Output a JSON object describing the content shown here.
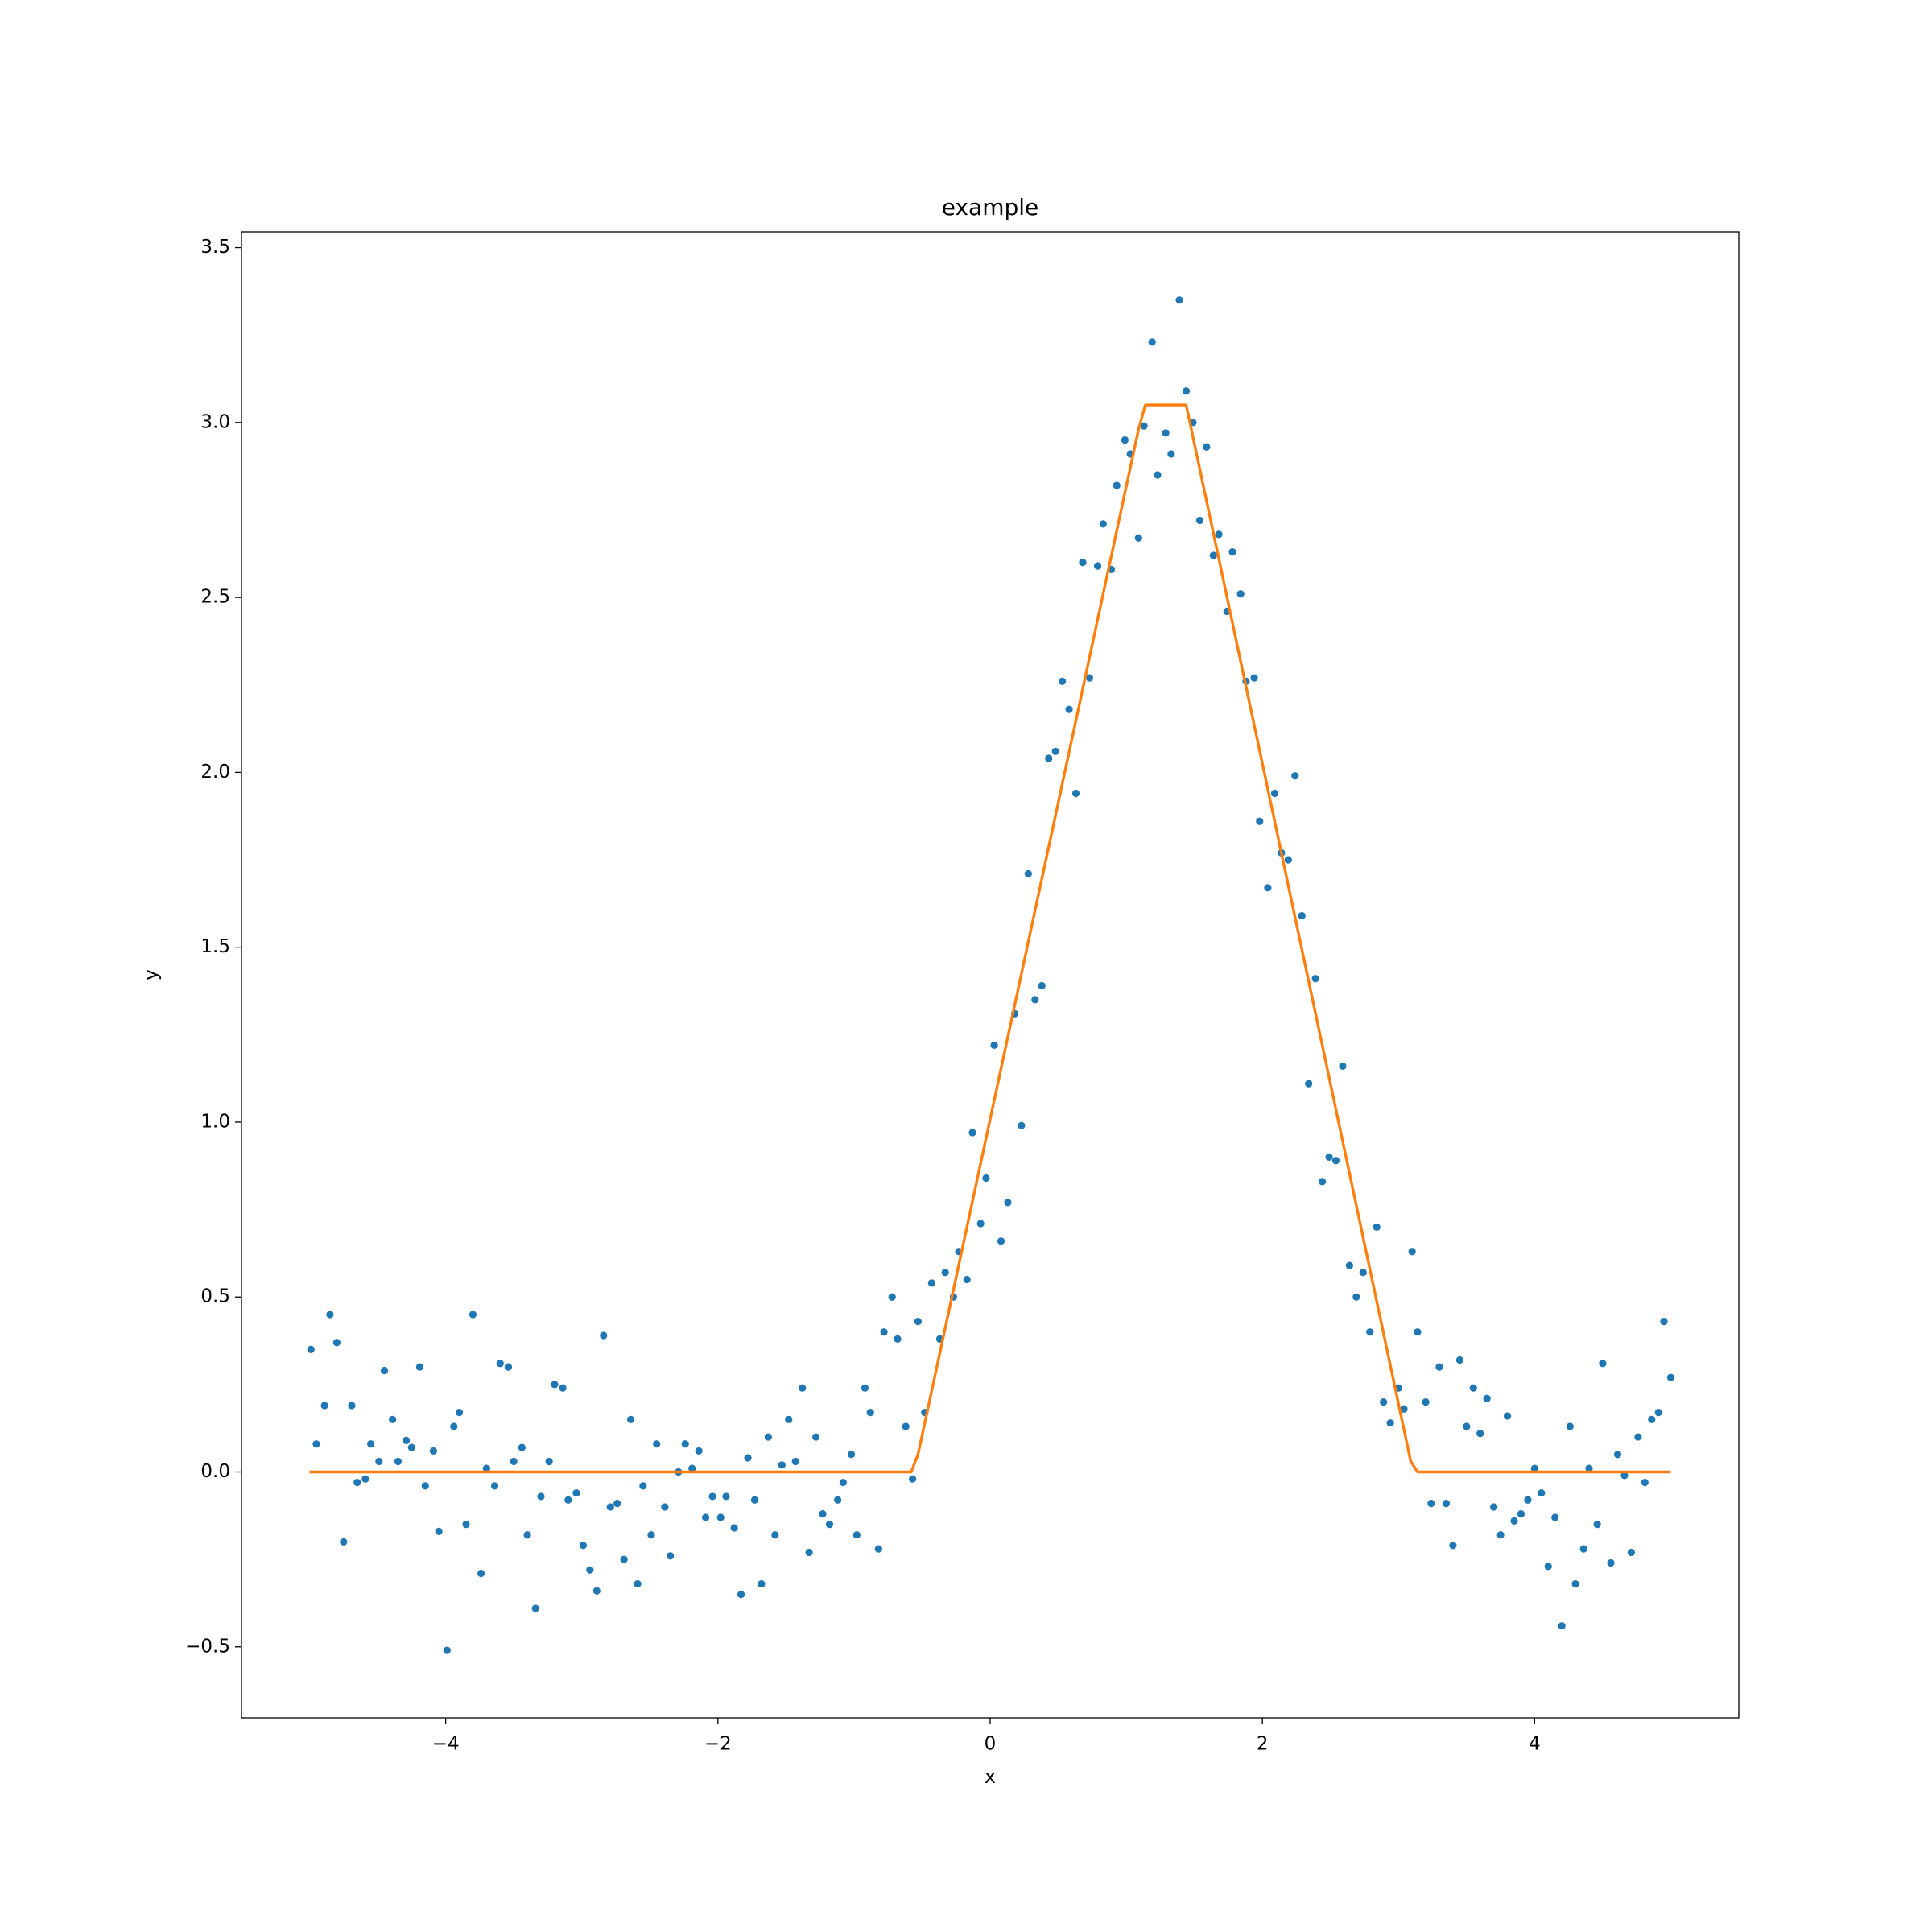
{
  "chart_data": {
    "type": "scatter",
    "title": "example",
    "x_label": "x",
    "y_label": "y",
    "xlim": [
      -5.5,
      5.5
    ],
    "ylim": [
      -0.703,
      3.545
    ],
    "xticks": [
      {
        "value": -4,
        "label": "−4"
      },
      {
        "value": -2,
        "label": "−2"
      },
      0,
      2,
      4
    ],
    "yticks": [
      {
        "value": -0.5,
        "label": "−0.5"
      },
      {
        "value": 0,
        "label": "0.0"
      },
      0.5,
      {
        "value": 1,
        "label": "1.0"
      },
      1.5,
      {
        "value": 2,
        "label": "2.0"
      },
      2.5,
      {
        "value": 3,
        "label": "3.0"
      },
      3.5
    ],
    "grid": false,
    "series": [
      {
        "type": "scatter",
        "color": "#1f77b4",
        "x": [
          -4.99,
          -4.95,
          -4.89,
          -4.85,
          -4.8,
          -4.75,
          -4.69,
          -4.65,
          -4.59,
          -4.55,
          -4.49,
          -4.45,
          -4.39,
          -4.35,
          -4.29,
          -4.25,
          -4.19,
          -4.15,
          -4.09,
          -4.05,
          -3.99,
          -3.94,
          -3.9,
          -3.85,
          -3.8,
          -3.74,
          -3.7,
          -3.64,
          -3.6,
          -3.54,
          -3.5,
          -3.44,
          -3.4,
          -3.34,
          -3.3,
          -3.24,
          -3.2,
          -3.14,
          -3.1,
          -3.04,
          -2.99,
          -2.94,
          -2.89,
          -2.84,
          -2.79,
          -2.74,
          -2.69,
          -2.64,
          -2.59,
          -2.55,
          -2.49,
          -2.45,
          -2.39,
          -2.35,
          -2.29,
          -2.24,
          -2.19,
          -2.14,
          -2.09,
          -2.04,
          -1.98,
          -1.94,
          -1.88,
          -1.83,
          -1.78,
          -1.73,
          -1.68,
          -1.63,
          -1.58,
          -1.53,
          -1.48,
          -1.43,
          -1.38,
          -1.33,
          -1.28,
          -1.23,
          -1.18,
          -1.12,
          -1.08,
          -1.02,
          -0.98,
          -0.92,
          -0.88,
          -0.82,
          -0.78,
          -0.72,
          -0.68,
          -0.62,
          -0.57,
          -0.53,
          -0.48,
          -0.43,
          -0.37,
          -0.33,
          -0.27,
          -0.23,
          -0.17,
          -0.13,
          -0.07,
          -0.03,
          0.03,
          0.08,
          0.13,
          0.18,
          0.23,
          0.28,
          0.33,
          0.38,
          0.43,
          0.48,
          0.53,
          0.58,
          0.63,
          0.68,
          0.73,
          0.79,
          0.83,
          0.89,
          0.93,
          0.99,
          1.03,
          1.09,
          1.13,
          1.19,
          1.23,
          1.29,
          1.33,
          1.39,
          1.44,
          1.49,
          1.54,
          1.59,
          1.64,
          1.68,
          1.74,
          1.78,
          1.84,
          1.88,
          1.94,
          1.98,
          2.04,
          2.09,
          2.14,
          2.19,
          2.24,
          2.29,
          2.34,
          2.39,
          2.44,
          2.49,
          2.54,
          2.59,
          2.64,
          2.69,
          2.74,
          2.79,
          2.84,
          2.89,
          2.94,
          3.0,
          3.04,
          3.1,
          3.14,
          3.2,
          3.24,
          3.3,
          3.35,
          3.4,
          3.45,
          3.5,
          3.55,
          3.6,
          3.65,
          3.7,
          3.75,
          3.8,
          3.85,
          3.9,
          3.95,
          4.0,
          4.05,
          4.1,
          4.15,
          4.2,
          4.26,
          4.3,
          4.36,
          4.4,
          4.46,
          4.5,
          4.56,
          4.61,
          4.66,
          4.71,
          4.76,
          4.81,
          4.86,
          4.91,
          4.95,
          5.0
        ],
        "values": [
          0.35,
          0.08,
          0.19,
          0.45,
          0.37,
          -0.2,
          0.19,
          -0.03,
          -0.02,
          0.08,
          0.03,
          0.29,
          0.15,
          0.03,
          0.09,
          0.07,
          0.3,
          -0.04,
          0.06,
          -0.17,
          -0.51,
          0.13,
          0.17,
          -0.15,
          0.45,
          -0.29,
          0.01,
          -0.04,
          0.31,
          0.3,
          0.03,
          0.07,
          -0.18,
          -0.39,
          -0.07,
          0.03,
          0.25,
          0.24,
          -0.08,
          -0.06,
          -0.21,
          -0.28,
          -0.34,
          0.39,
          -0.1,
          -0.09,
          -0.25,
          0.15,
          -0.32,
          -0.04,
          -0.18,
          0.08,
          -0.1,
          -0.24,
          0,
          0.08,
          0.01,
          0.06,
          -0.13,
          -0.07,
          -0.13,
          -0.07,
          -0.16,
          -0.35,
          0.04,
          -0.08,
          -0.32,
          0.1,
          -0.18,
          0.02,
          0.15,
          0.03,
          0.24,
          -0.23,
          0.1,
          -0.12,
          -0.15,
          -0.08,
          -0.03,
          0.05,
          -0.18,
          0.24,
          0.17,
          -0.22,
          0.4,
          0.5,
          0.38,
          0.13,
          -0.02,
          0.43,
          0.17,
          0.54,
          0.38,
          0.57,
          0.5,
          0.63,
          0.55,
          0.97,
          0.71,
          0.84,
          1.22,
          0.66,
          0.77,
          1.31,
          0.99,
          1.71,
          1.35,
          1.39,
          2.04,
          2.06,
          2.26,
          2.18,
          1.94,
          2.6,
          2.27,
          2.59,
          2.71,
          2.58,
          2.82,
          2.95,
          2.91,
          2.67,
          2.99,
          3.23,
          2.85,
          2.97,
          2.91,
          3.35,
          3.09,
          3.0,
          2.72,
          2.93,
          2.62,
          2.68,
          2.46,
          2.63,
          2.51,
          2.26,
          2.27,
          1.86,
          1.67,
          1.94,
          1.77,
          1.75,
          1.99,
          1.59,
          1.11,
          1.41,
          0.83,
          0.9,
          0.89,
          1.16,
          0.59,
          0.5,
          0.57,
          0.4,
          0.7,
          0.2,
          0.14,
          0.24,
          0.18,
          0.63,
          0.4,
          0.2,
          -0.09,
          0.3,
          -0.09,
          -0.21,
          0.32,
          0.13,
          0.24,
          0.11,
          0.21,
          -0.1,
          -0.18,
          0.16,
          -0.14,
          -0.12,
          -0.08,
          0.01,
          -0.06,
          -0.27,
          -0.13,
          -0.44,
          0.13,
          -0.32,
          -0.22,
          0.01,
          -0.15,
          0.31,
          -0.26,
          0.05,
          -0.01,
          -0.23,
          0.1,
          -0.03,
          0.15,
          0.17,
          0.43,
          0.27
        ]
      },
      {
        "type": "line",
        "color": "#ff7f0e",
        "x": [
          -5,
          -0.58,
          -0.53,
          1.09,
          1.14,
          1.44,
          3.09,
          3.14,
          5
        ],
        "values": [
          0,
          0,
          0.05,
          2.98,
          3.05,
          3.05,
          0.03,
          0,
          0
        ]
      }
    ]
  }
}
